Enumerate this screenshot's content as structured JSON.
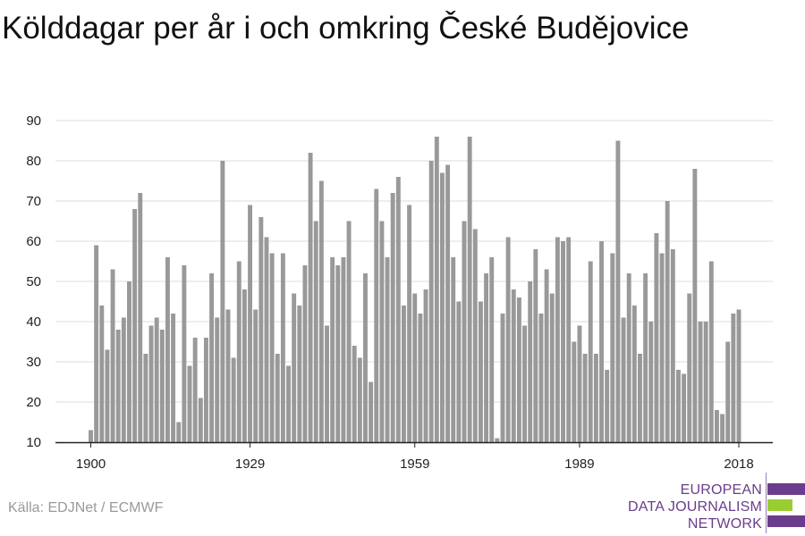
{
  "title": "Kölddagar per år i och omkring České Budějovice",
  "source": "Källa: EDJNet / ECMWF",
  "logo": {
    "lines": [
      "EUROPEAN",
      "DATA JOURNALISM",
      "NETWORK"
    ],
    "purple": "#6a3d8c",
    "green": "#9acd32"
  },
  "chart_data": {
    "type": "bar",
    "title": "Kölddagar per år i och omkring České Budějovice",
    "xlabel": "",
    "ylabel": "",
    "x_start": 1900,
    "x_end": 2018,
    "x_ticks": [
      1900,
      1929,
      1959,
      1989,
      2018
    ],
    "y_ticks": [
      10,
      20,
      30,
      40,
      50,
      60,
      70,
      80,
      90
    ],
    "ylim": [
      10,
      90
    ],
    "grid": true,
    "bar_color": "#999999",
    "values": [
      13,
      59,
      44,
      33,
      53,
      38,
      41,
      50,
      68,
      72,
      32,
      39,
      41,
      38,
      56,
      42,
      15,
      54,
      29,
      36,
      21,
      36,
      52,
      41,
      80,
      43,
      31,
      55,
      48,
      69,
      43,
      66,
      61,
      57,
      32,
      57,
      29,
      47,
      44,
      54,
      82,
      65,
      75,
      39,
      56,
      54,
      56,
      65,
      34,
      31,
      52,
      25,
      73,
      65,
      56,
      72,
      76,
      44,
      69,
      47,
      42,
      48,
      80,
      86,
      77,
      79,
      56,
      45,
      65,
      86,
      63,
      45,
      52,
      56,
      11,
      42,
      61,
      48,
      46,
      39,
      50,
      58,
      42,
      53,
      47,
      61,
      60,
      61,
      35,
      39,
      32,
      55,
      32,
      60,
      28,
      57,
      85,
      41,
      52,
      44,
      32,
      52,
      40,
      62,
      57,
      70,
      58,
      28,
      27,
      47,
      78,
      40,
      40,
      55,
      18,
      17,
      35,
      42,
      43
    ]
  }
}
